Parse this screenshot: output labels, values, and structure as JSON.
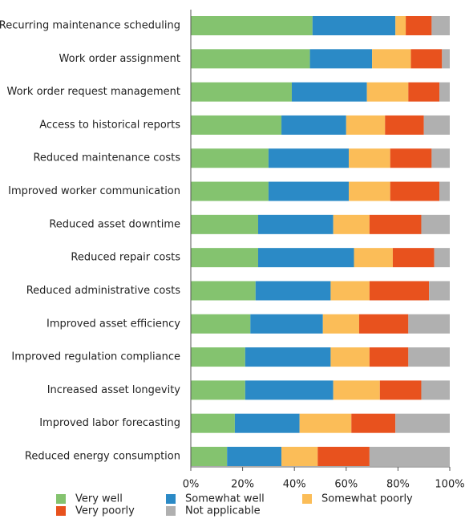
{
  "chart_data": {
    "type": "stacked-bar-horizontal",
    "categories": [
      "Recurring maintenance scheduling",
      "Work order assignment",
      "Work order request management",
      "Access to historical reports",
      "Reduced maintenance costs",
      "Improved worker communication",
      "Reduced asset downtime",
      "Reduced repair costs",
      "Reduced administrative costs",
      "Improved asset efficiency",
      "Improved regulation compliance",
      "Increased asset longevity",
      "Improved labor forecasting",
      "Reduced energy consumption"
    ],
    "series": [
      {
        "name": "Very well",
        "color": "#84c36f",
        "values": [
          47,
          46,
          39,
          35,
          30,
          30,
          26,
          26,
          25,
          23,
          21,
          21,
          17,
          14
        ]
      },
      {
        "name": "Somewhat well",
        "color": "#2b8ac6",
        "values": [
          32,
          24,
          29,
          25,
          31,
          31,
          29,
          37,
          29,
          28,
          33,
          34,
          25,
          21
        ]
      },
      {
        "name": "Somewhat poorly",
        "color": "#fbbd58",
        "values": [
          4,
          15,
          16,
          15,
          16,
          16,
          14,
          15,
          15,
          14,
          15,
          18,
          20,
          14
        ]
      },
      {
        "name": "Very poorly",
        "color": "#e8521e",
        "values": [
          10,
          12,
          12,
          15,
          16,
          19,
          20,
          16,
          23,
          19,
          15,
          16,
          17,
          20
        ]
      },
      {
        "name": "Not applicable",
        "color": "#b0b0b0",
        "values": [
          7,
          3,
          4,
          10,
          7,
          4,
          11,
          6,
          8,
          16,
          16,
          11,
          21,
          31
        ]
      }
    ],
    "xlim": [
      0,
      100
    ],
    "xticks": [
      {
        "value": 0,
        "label": "0%"
      },
      {
        "value": 20,
        "label": "20%"
      },
      {
        "value": 40,
        "label": "40%"
      },
      {
        "value": 60,
        "label": "60%"
      },
      {
        "value": 80,
        "label": "80%"
      },
      {
        "value": 100,
        "label": "100%"
      }
    ]
  }
}
